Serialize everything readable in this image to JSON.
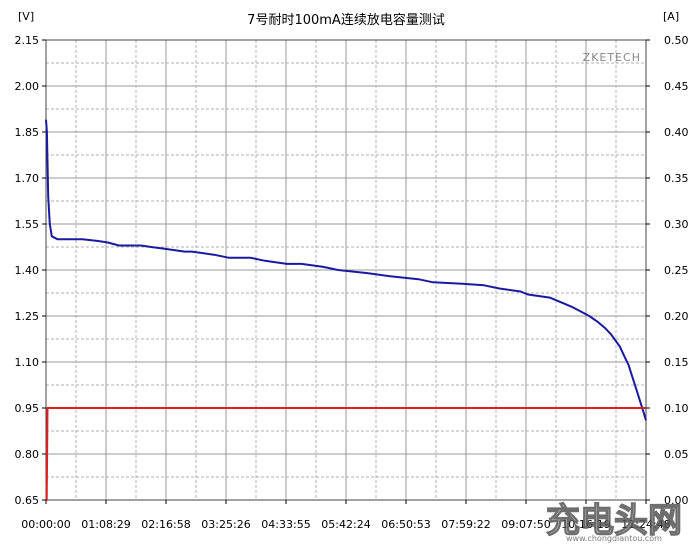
{
  "chart_data": {
    "type": "line",
    "title": "7号耐时100mA连续放电容量测试",
    "brand": "ZKETECH",
    "watermark": {
      "main": "充电头网",
      "sub": "www.chongdiantou.com"
    },
    "y_left": {
      "unit": "[V]",
      "min": 0.65,
      "max": 2.15,
      "ticks": [
        "2.15",
        "2.00",
        "1.85",
        "1.70",
        "1.55",
        "1.40",
        "1.25",
        "1.10",
        "0.95",
        "0.80",
        "0.65"
      ]
    },
    "y_right": {
      "unit": "[A]",
      "min": 0.0,
      "max": 0.5,
      "ticks": [
        "0.50",
        "0.45",
        "0.40",
        "0.35",
        "0.30",
        "0.25",
        "0.20",
        "0.15",
        "0.10",
        "0.05",
        "0.00"
      ]
    },
    "x": {
      "min_seconds": 0,
      "max_seconds": 41090,
      "ticks": [
        "00:00:00",
        "01:08:29",
        "02:16:58",
        "03:25:26",
        "04:33:55",
        "05:42:24",
        "06:50:53",
        "07:59:22",
        "09:07:50",
        "10:16:19",
        "11:24:48"
      ]
    },
    "grid": true,
    "series": [
      {
        "axis": "left",
        "color": "#1a1aa0",
        "x": [
          0,
          60,
          150,
          260,
          400,
          800,
          1500,
          2500,
          3500,
          4200,
          5000,
          6500,
          7200,
          8000,
          9500,
          10000,
          11500,
          12500,
          14000,
          15000,
          16500,
          17500,
          19000,
          20000,
          22000,
          23500,
          25500,
          26500,
          28500,
          30000,
          31000,
          32500,
          33000,
          34500,
          35500,
          36000,
          36800,
          37200,
          37800,
          38300,
          38700,
          39000,
          39300,
          39600,
          39900,
          40100,
          40300,
          40500,
          40700,
          40900,
          41090
        ],
        "y": [
          1.89,
          1.85,
          1.64,
          1.55,
          1.51,
          1.5,
          1.5,
          1.5,
          1.495,
          1.49,
          1.48,
          1.48,
          1.475,
          1.47,
          1.46,
          1.46,
          1.45,
          1.44,
          1.44,
          1.43,
          1.42,
          1.42,
          1.41,
          1.4,
          1.39,
          1.38,
          1.37,
          1.36,
          1.355,
          1.35,
          1.34,
          1.33,
          1.32,
          1.31,
          1.29,
          1.28,
          1.26,
          1.25,
          1.23,
          1.21,
          1.19,
          1.17,
          1.15,
          1.12,
          1.09,
          1.06,
          1.03,
          1.0,
          0.97,
          0.94,
          0.91
        ]
      },
      {
        "axis": "right",
        "color": "#e02020",
        "x": [
          0,
          50,
          100,
          41090
        ],
        "y": [
          0.0,
          0.0,
          0.1,
          0.1
        ]
      }
    ]
  }
}
